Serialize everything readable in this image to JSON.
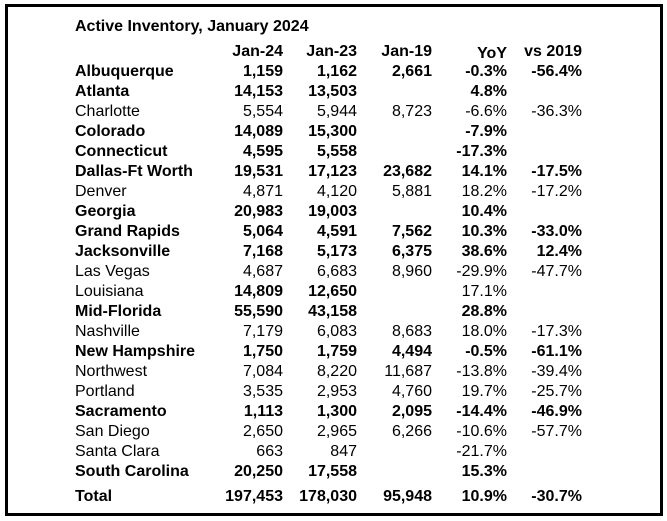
{
  "title": "Active Inventory, January 2024",
  "columns": [
    "Jan-24",
    "Jan-23",
    "Jan-19",
    "YoY",
    "vs 2019"
  ],
  "rows": [
    {
      "name": "Albuquerque",
      "jan24": "1,159",
      "jan23": "1,162",
      "jan19": "2,661",
      "yoy": "-0.3%",
      "vs2019": "-56.4%"
    },
    {
      "name": "Atlanta",
      "jan24": "14,153",
      "jan23": "13,503",
      "jan19": "",
      "yoy": "4.8%",
      "vs2019": ""
    },
    {
      "name": "Charlotte",
      "jan24": "5,554",
      "jan23": "5,944",
      "jan19": "8,723",
      "yoy": "-6.6%",
      "vs2019": "-36.3%"
    },
    {
      "name": "Colorado",
      "jan24": "14,089",
      "jan23": "15,300",
      "jan19": "",
      "yoy": "-7.9%",
      "vs2019": ""
    },
    {
      "name": "Connecticut",
      "jan24": "4,595",
      "jan23": "5,558",
      "jan19": "",
      "yoy": "-17.3%",
      "vs2019": ""
    },
    {
      "name": "Dallas-Ft Worth",
      "jan24": "19,531",
      "jan23": "17,123",
      "jan19": "23,682",
      "yoy": "14.1%",
      "vs2019": "-17.5%"
    },
    {
      "name": "Denver",
      "jan24": "4,871",
      "jan23": "4,120",
      "jan19": "5,881",
      "yoy": "18.2%",
      "vs2019": "-17.2%"
    },
    {
      "name": "Georgia",
      "jan24": "20,983",
      "jan23": "19,003",
      "jan19": "",
      "yoy": "10.4%",
      "vs2019": ""
    },
    {
      "name": "Grand Rapids",
      "jan24": "5,064",
      "jan23": "4,591",
      "jan19": "7,562",
      "yoy": "10.3%",
      "vs2019": "-33.0%"
    },
    {
      "name": "Jacksonville",
      "jan24": "7,168",
      "jan23": "5,173",
      "jan19": "6,375",
      "yoy": "38.6%",
      "vs2019": "12.4%"
    },
    {
      "name": "Las Vegas",
      "jan24": "4,687",
      "jan23": "6,683",
      "jan19": "8,960",
      "yoy": "-29.9%",
      "vs2019": "-47.7%"
    },
    {
      "name": "Louisiana",
      "jan24": "14,809",
      "jan23": "12,650",
      "jan19": "",
      "yoy": "17.1%",
      "vs2019": ""
    },
    {
      "name": "Mid-Florida",
      "jan24": "55,590",
      "jan23": "43,158",
      "jan19": "",
      "yoy": "28.8%",
      "vs2019": ""
    },
    {
      "name": "Nashville",
      "jan24": "7,179",
      "jan23": "6,083",
      "jan19": "8,683",
      "yoy": "18.0%",
      "vs2019": "-17.3%"
    },
    {
      "name": "New Hampshire",
      "jan24": "1,750",
      "jan23": "1,759",
      "jan19": "4,494",
      "yoy": "-0.5%",
      "vs2019": "-61.1%"
    },
    {
      "name": "Northwest",
      "jan24": "7,084",
      "jan23": "8,220",
      "jan19": "11,687",
      "yoy": "-13.8%",
      "vs2019": "-39.4%"
    },
    {
      "name": "Portland",
      "jan24": "3,535",
      "jan23": "2,953",
      "jan19": "4,760",
      "yoy": "19.7%",
      "vs2019": "-25.7%"
    },
    {
      "name": "Sacramento",
      "jan24": "1,113",
      "jan23": "1,300",
      "jan19": "2,095",
      "yoy": "-14.4%",
      "vs2019": "-46.9%"
    },
    {
      "name": "San Diego",
      "jan24": "2,650",
      "jan23": "2,965",
      "jan19": "6,266",
      "yoy": "-10.6%",
      "vs2019": "-57.7%"
    },
    {
      "name": "Santa Clara",
      "jan24": "663",
      "jan23": "847",
      "jan19": "",
      "yoy": "-21.7%",
      "vs2019": ""
    },
    {
      "name": "South Carolina",
      "jan24": "20,250",
      "jan23": "17,558",
      "jan19": "",
      "yoy": "15.3%",
      "vs2019": ""
    }
  ],
  "total": {
    "name": "Total",
    "jan24": "197,453",
    "jan23": "178,030",
    "jan19": "95,948",
    "yoy": "10.9%",
    "vs2019": "-30.7%"
  }
}
